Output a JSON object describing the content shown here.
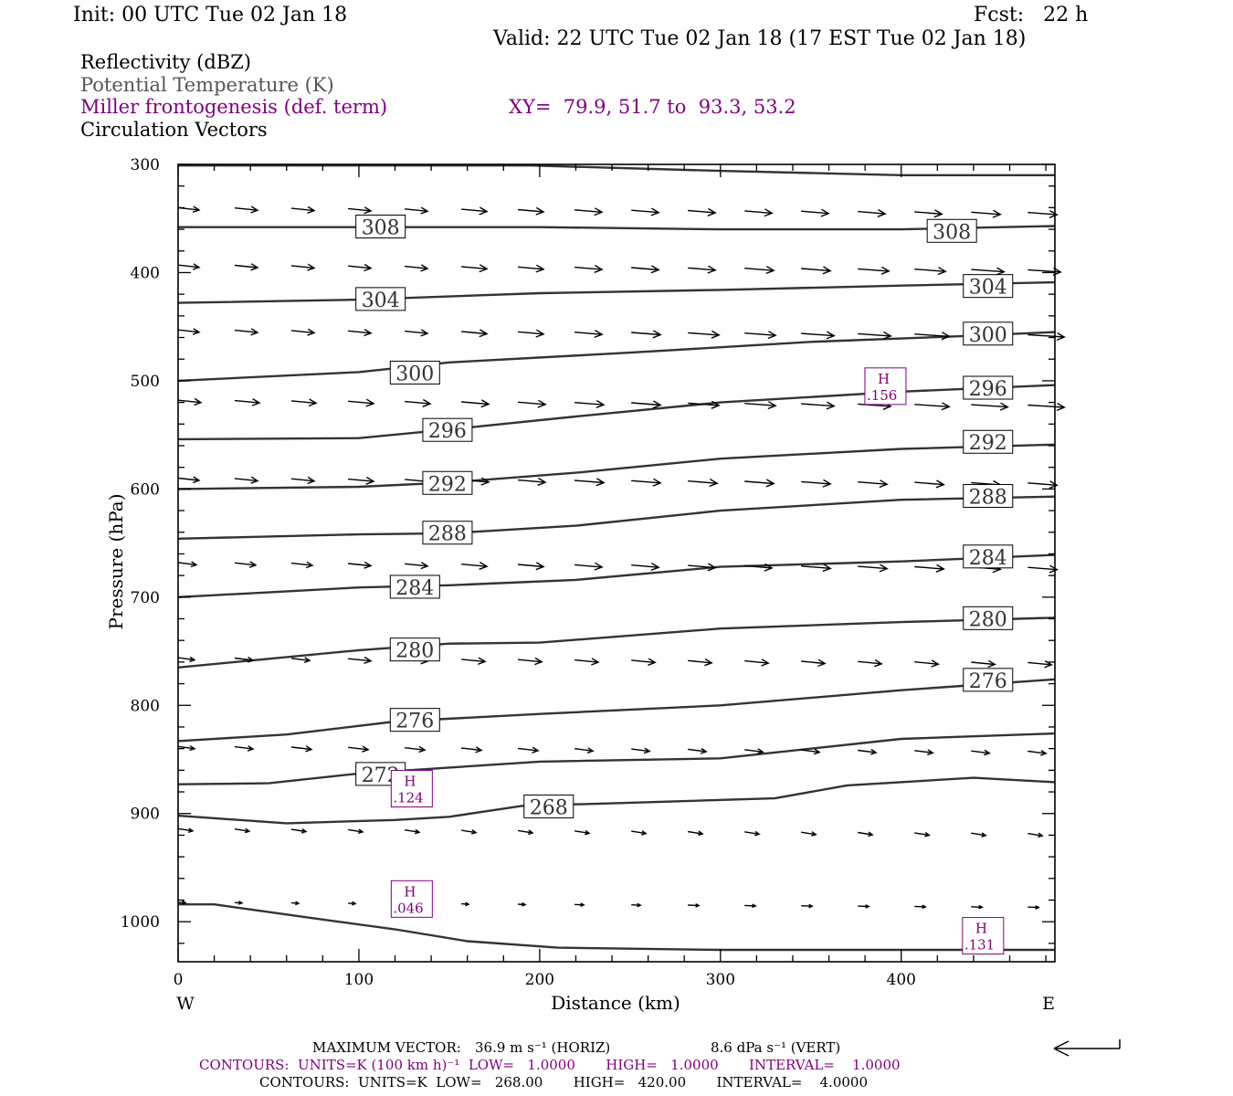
{
  "header": {
    "init": "Init: 00 UTC Tue 02 Jan 18",
    "fcst": "Fcst:   22 h",
    "valid": "Valid: 22 UTC Tue 02 Jan 18 (17 EST Tue 02 Jan 18)"
  },
  "legend": {
    "field1": "Reflectivity (dBZ)",
    "field2": "Potential Temperature (K)",
    "field3": "Miller frontogenesis (def. term)",
    "xy": "XY=  79.9, 51.7 to  93.3, 53.2",
    "field4": "Circulation Vectors"
  },
  "footer": {
    "maxvec_label": "MAXIMUM VECTOR:",
    "maxvec_h": "36.9 m s⁻¹ (HORIZ)",
    "maxvec_v": "8.6 dPa s⁻¹ (VERT)",
    "contours1": "CONTOURS:  UNITS=K (100 km h)⁻¹  LOW=   1.0000       HIGH=   1.0000       INTERVAL=    1.0000",
    "contours2": "CONTOURS:  UNITS=K  LOW=   268.00       HIGH=   420.00       INTERVAL=    4.0000"
  },
  "colors": {
    "purple": "#800080",
    "gray": "#555555",
    "black": "#000000"
  },
  "chart_data": {
    "type": "line",
    "xlabel": "Distance (km)",
    "ylabel": "Pressure (hPa)",
    "xlim": [
      0,
      485
    ],
    "ylim": [
      300,
      1037
    ],
    "y_inverted": true,
    "xticks": [
      0,
      100,
      200,
      300,
      400
    ],
    "yticks": [
      300,
      400,
      500,
      600,
      700,
      800,
      900,
      1000
    ],
    "x_end_labels": {
      "left": "W",
      "right": "E"
    },
    "isentropes": [
      {
        "theta": "",
        "points": [
          [
            0,
            301
          ],
          [
            105,
            301
          ],
          [
            195,
            301
          ],
          [
            300,
            306
          ],
          [
            400,
            310
          ],
          [
            485,
            310
          ]
        ]
      },
      {
        "theta": "308",
        "points": [
          [
            0,
            358
          ],
          [
            100,
            358
          ],
          [
            200,
            358
          ],
          [
            300,
            360
          ],
          [
            400,
            360
          ],
          [
            485,
            357
          ]
        ]
      },
      {
        "theta": "304",
        "points": [
          [
            0,
            428
          ],
          [
            100,
            425
          ],
          [
            200,
            419
          ],
          [
            300,
            416
          ],
          [
            400,
            412
          ],
          [
            485,
            409
          ]
        ]
      },
      {
        "theta": "300",
        "points": [
          [
            0,
            500
          ],
          [
            100,
            492
          ],
          [
            150,
            483
          ],
          [
            250,
            474
          ],
          [
            350,
            464
          ],
          [
            430,
            459
          ],
          [
            485,
            455
          ]
        ]
      },
      {
        "theta": "296",
        "points": [
          [
            0,
            554
          ],
          [
            100,
            553
          ],
          [
            150,
            545
          ],
          [
            220,
            533
          ],
          [
            300,
            520
          ],
          [
            400,
            510
          ],
          [
            485,
            504
          ]
        ]
      },
      {
        "theta": "292",
        "points": [
          [
            0,
            600
          ],
          [
            100,
            598
          ],
          [
            150,
            594
          ],
          [
            220,
            585
          ],
          [
            300,
            572
          ],
          [
            400,
            563
          ],
          [
            485,
            559
          ]
        ]
      },
      {
        "theta": "288",
        "points": [
          [
            0,
            646
          ],
          [
            100,
            642
          ],
          [
            150,
            641
          ],
          [
            220,
            634
          ],
          [
            300,
            620
          ],
          [
            400,
            610
          ],
          [
            485,
            607
          ]
        ]
      },
      {
        "theta": "284",
        "points": [
          [
            0,
            700
          ],
          [
            100,
            691
          ],
          [
            150,
            689
          ],
          [
            220,
            684
          ],
          [
            300,
            672
          ],
          [
            400,
            667
          ],
          [
            485,
            661
          ]
        ]
      },
      {
        "theta": "280",
        "points": [
          [
            0,
            765
          ],
          [
            100,
            749
          ],
          [
            150,
            743
          ],
          [
            200,
            742
          ],
          [
            300,
            729
          ],
          [
            400,
            723
          ],
          [
            485,
            719
          ]
        ]
      },
      {
        "theta": "276",
        "points": [
          [
            0,
            833
          ],
          [
            60,
            827
          ],
          [
            120,
            815
          ],
          [
            200,
            808
          ],
          [
            300,
            800
          ],
          [
            400,
            786
          ],
          [
            485,
            776
          ]
        ]
      },
      {
        "theta": "272",
        "points": [
          [
            0,
            873
          ],
          [
            50,
            872
          ],
          [
            100,
            863
          ],
          [
            200,
            852
          ],
          [
            300,
            849
          ],
          [
            400,
            831
          ],
          [
            485,
            826
          ]
        ]
      },
      {
        "theta": "268",
        "points": [
          [
            0,
            902
          ],
          [
            60,
            909
          ],
          [
            120,
            906
          ],
          [
            150,
            903
          ],
          [
            190,
            893
          ],
          [
            250,
            890
          ],
          [
            330,
            886
          ],
          [
            370,
            874
          ],
          [
            440,
            867
          ],
          [
            485,
            871
          ]
        ]
      },
      {
        "theta": "",
        "points": [
          [
            0,
            984
          ],
          [
            20,
            984
          ],
          [
            80,
            998
          ],
          [
            120,
            1007
          ],
          [
            160,
            1018
          ],
          [
            210,
            1024
          ],
          [
            300,
            1026
          ],
          [
            485,
            1026
          ]
        ]
      }
    ],
    "contour_labels": [
      {
        "text": "308",
        "x": 112,
        "p": 357
      },
      {
        "text": "308",
        "x": 428,
        "p": 361
      },
      {
        "text": "304",
        "x": 112,
        "p": 424
      },
      {
        "text": "304",
        "x": 448,
        "p": 412
      },
      {
        "text": "300",
        "x": 131,
        "p": 492
      },
      {
        "text": "300",
        "x": 448,
        "p": 456
      },
      {
        "text": "296",
        "x": 149,
        "p": 545
      },
      {
        "text": "296",
        "x": 448,
        "p": 506
      },
      {
        "text": "292",
        "x": 149,
        "p": 594
      },
      {
        "text": "292",
        "x": 448,
        "p": 556
      },
      {
        "text": "288",
        "x": 149,
        "p": 640
      },
      {
        "text": "288",
        "x": 448,
        "p": 606
      },
      {
        "text": "284",
        "x": 131,
        "p": 690
      },
      {
        "text": "284",
        "x": 448,
        "p": 662
      },
      {
        "text": "280",
        "x": 131,
        "p": 748
      },
      {
        "text": "280",
        "x": 448,
        "p": 719
      },
      {
        "text": "276",
        "x": 131,
        "p": 813
      },
      {
        "text": "276",
        "x": 448,
        "p": 776
      },
      {
        "text": "272",
        "x": 112,
        "p": 863
      },
      {
        "text": "268",
        "x": 205,
        "p": 893
      }
    ],
    "highs": [
      {
        "label": "H",
        "value": ".156",
        "x": 391,
        "p": 505
      },
      {
        "label": "H",
        "value": ".124",
        "x": 129,
        "p": 877
      },
      {
        "label": "H",
        "value": ".046",
        "x": 129,
        "p": 979
      },
      {
        "label": "H",
        "value": ".131",
        "x": 445,
        "p": 1013
      }
    ],
    "vector_rows": [
      {
        "p": 340,
        "lens": [
          23,
          25,
          25,
          25,
          25,
          28,
          28,
          30,
          30,
          30,
          30,
          30,
          30,
          30,
          32,
          32
        ]
      },
      {
        "p": 393,
        "lens": [
          23,
          25,
          25,
          25,
          25,
          28,
          28,
          30,
          30,
          30,
          32,
          32,
          34,
          34,
          36,
          36
        ]
      },
      {
        "p": 453,
        "lens": [
          23,
          25,
          25,
          25,
          25,
          28,
          28,
          30,
          32,
          34,
          34,
          36,
          36,
          38,
          40,
          40
        ]
      },
      {
        "p": 518,
        "lens": [
          25,
          27,
          27,
          28,
          28,
          30,
          30,
          32,
          32,
          34,
          34,
          36,
          36,
          38,
          40,
          40
        ]
      },
      {
        "p": 590,
        "lens": [
          23,
          25,
          25,
          28,
          28,
          30,
          30,
          32,
          32,
          32,
          32,
          32,
          32,
          32,
          32,
          32
        ]
      },
      {
        "p": 668,
        "lens": [
          20,
          23,
          23,
          25,
          25,
          28,
          28,
          30,
          30,
          30,
          30,
          32,
          32,
          32,
          32,
          32
        ]
      },
      {
        "p": 756,
        "lens": [
          18,
          20,
          20,
          25,
          25,
          26,
          26,
          26,
          26,
          26,
          26,
          26,
          26,
          26,
          26,
          26
        ]
      },
      {
        "p": 838,
        "lens": [
          18,
          20,
          22,
          22,
          22,
          22,
          22,
          20,
          20,
          20,
          20,
          20,
          20,
          20,
          20,
          20
        ]
      },
      {
        "p": 914,
        "lens": [
          16,
          16,
          16,
          16,
          16,
          16,
          16,
          16,
          16,
          16,
          16,
          16,
          16,
          16,
          16,
          16
        ]
      },
      {
        "p": 982,
        "lens": [
          8,
          8,
          8,
          8,
          8,
          8,
          8,
          10,
          10,
          12,
          12,
          12,
          12,
          12,
          12,
          12
        ]
      }
    ]
  }
}
